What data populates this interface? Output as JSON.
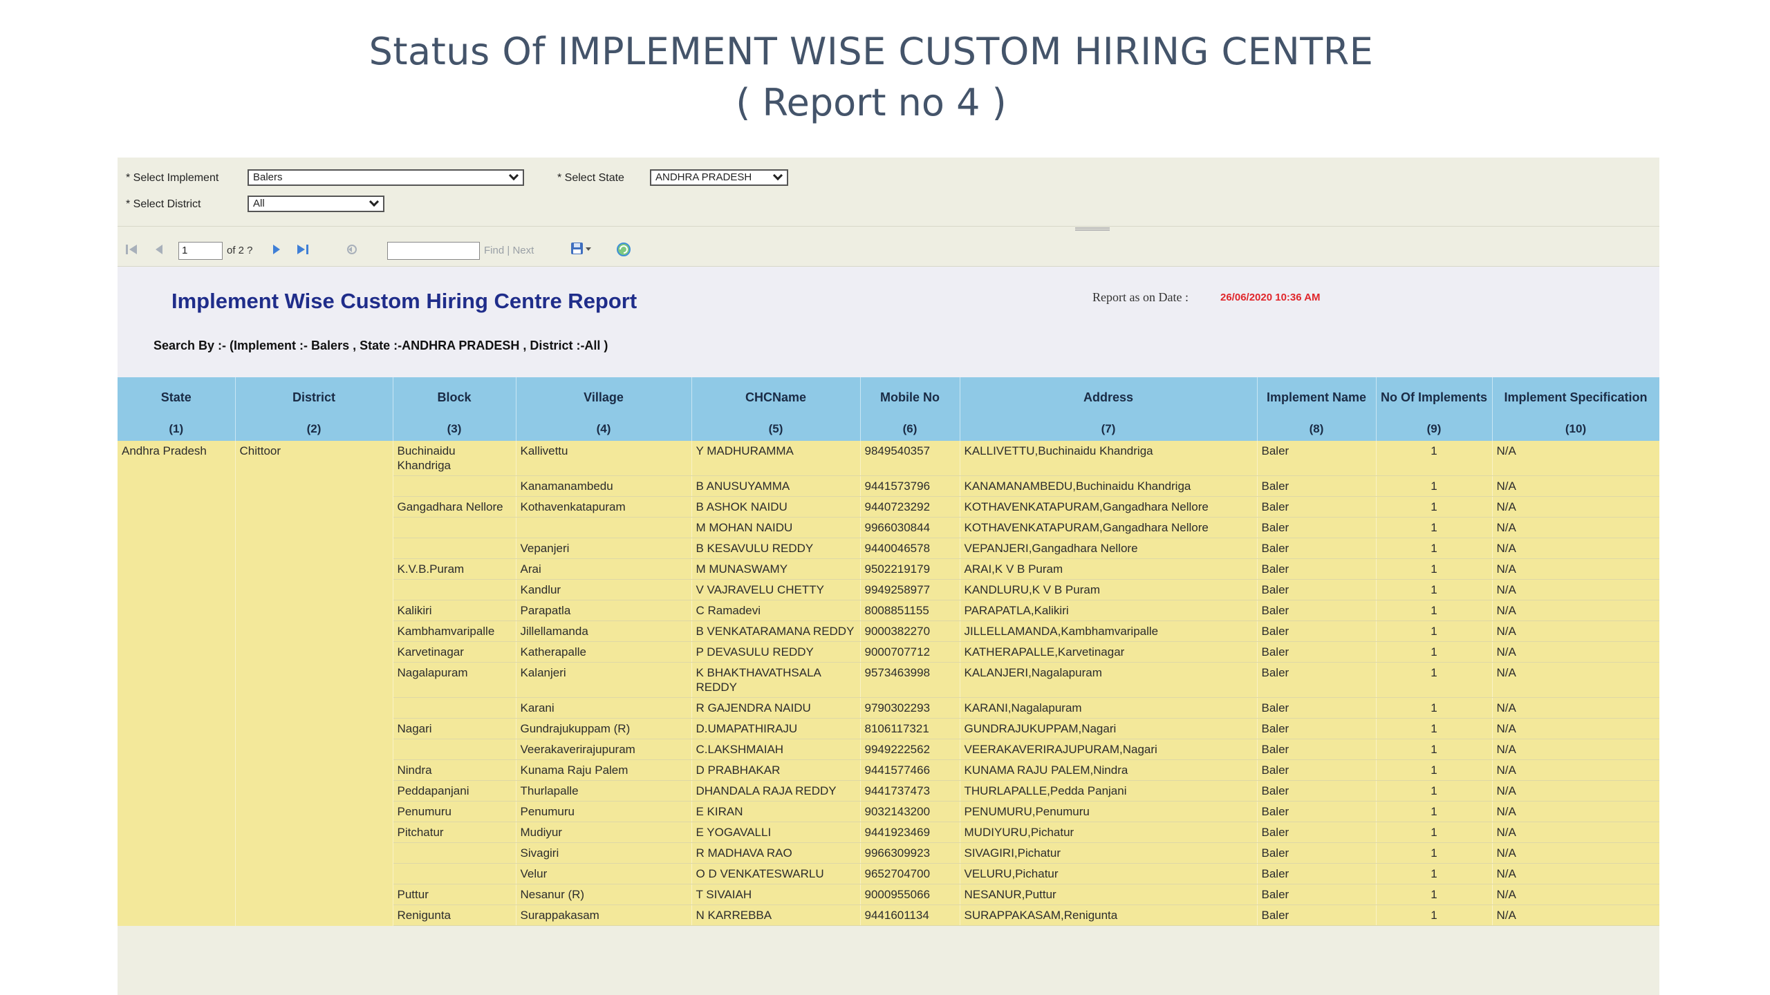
{
  "slide": {
    "title_line1": "Status Of IMPLEMENT WISE CUSTOM HIRING CENTRE",
    "title_line2": "( Report no 4 )"
  },
  "params": {
    "implement_label": "* Select Implement",
    "implement_value": "Balers",
    "state_label": "* Select State",
    "state_value": "ANDHRA PRADESH",
    "district_label": "* Select District",
    "district_value": "All"
  },
  "toolbar": {
    "page_value": "1",
    "page_of": "of 2 ?",
    "find_label": "Find",
    "separator": "|",
    "next_label": "Next"
  },
  "report": {
    "title": "Implement Wise Custom Hiring Centre Report",
    "date_label": "Report as on Date :",
    "date_value": "26/06/2020 10:36 AM",
    "search_by": "Search By :- (Implement :- Balers , State :-ANDHRA PRADESH , District :-All )"
  },
  "table": {
    "headers": [
      "State",
      "District",
      "Block",
      "Village",
      "CHCName",
      "Mobile No",
      "Address",
      "Implement Name",
      "No Of Implements",
      "Implement Specification"
    ],
    "numbers": [
      "(1)",
      "(2)",
      "(3)",
      "(4)",
      "(5)",
      "(6)",
      "(7)",
      "(8)",
      "(9)",
      "(10)"
    ],
    "state": "Andhra Pradesh",
    "district": "Chittoor",
    "rows": [
      {
        "block": "Buchinaidu Khandriga",
        "village": "Kallivettu",
        "chc": "Y MADHURAMMA",
        "mobile": "9849540357",
        "address": "KALLIVETTU,Buchinaidu Khandriga",
        "impl": "Baler",
        "count": "1",
        "spec": "N/A"
      },
      {
        "block": "",
        "village": "Kanamanambedu",
        "chc": "B ANUSUYAMMA",
        "mobile": "9441573796",
        "address": "KANAMANAMBEDU,Buchinaidu Khandriga",
        "impl": "Baler",
        "count": "1",
        "spec": "N/A"
      },
      {
        "block": "Gangadhara Nellore",
        "village": "Kothavenkatapuram",
        "chc": "B ASHOK NAIDU",
        "mobile": "9440723292",
        "address": "KOTHAVENKATAPURAM,Gangadhara Nellore",
        "impl": "Baler",
        "count": "1",
        "spec": "N/A"
      },
      {
        "block": "",
        "village": "",
        "chc": "M MOHAN NAIDU",
        "mobile": "9966030844",
        "address": "KOTHAVENKATAPURAM,Gangadhara Nellore",
        "impl": "Baler",
        "count": "1",
        "spec": "N/A"
      },
      {
        "block": "",
        "village": "Vepanjeri",
        "chc": "B KESAVULU REDDY",
        "mobile": "9440046578",
        "address": "VEPANJERI,Gangadhara Nellore",
        "impl": "Baler",
        "count": "1",
        "spec": "N/A"
      },
      {
        "block": "K.V.B.Puram",
        "village": "Arai",
        "chc": "M MUNASWAMY",
        "mobile": "9502219179",
        "address": "ARAI,K V B Puram",
        "impl": "Baler",
        "count": "1",
        "spec": "N/A"
      },
      {
        "block": "",
        "village": "Kandlur",
        "chc": "V VAJRAVELU CHETTY",
        "mobile": "9949258977",
        "address": "KANDLURU,K V B Puram",
        "impl": "Baler",
        "count": "1",
        "spec": "N/A"
      },
      {
        "block": "Kalikiri",
        "village": "Parapatla",
        "chc": "C Ramadevi",
        "mobile": "8008851155",
        "address": "PARAPATLA,Kalikiri",
        "impl": "Baler",
        "count": "1",
        "spec": "N/A"
      },
      {
        "block": "Kambhamvaripalle",
        "village": "Jillellamanda",
        "chc": "B VENKATARAMANA REDDY",
        "mobile": "9000382270",
        "address": "JILLELLAMANDA,Kambhamvaripalle",
        "impl": "Baler",
        "count": "1",
        "spec": "N/A"
      },
      {
        "block": "Karvetinagar",
        "village": "Katherapalle",
        "chc": "P DEVASULU REDDY",
        "mobile": "9000707712",
        "address": "KATHERAPALLE,Karvetinagar",
        "impl": "Baler",
        "count": "1",
        "spec": "N/A"
      },
      {
        "block": "Nagalapuram",
        "village": "Kalanjeri",
        "chc": "K BHAKTHAVATHSALA REDDY",
        "mobile": "9573463998",
        "address": "KALANJERI,Nagalapuram",
        "impl": "Baler",
        "count": "1",
        "spec": "N/A"
      },
      {
        "block": "",
        "village": "Karani",
        "chc": "R GAJENDRA NAIDU",
        "mobile": "9790302293",
        "address": "KARANI,Nagalapuram",
        "impl": "Baler",
        "count": "1",
        "spec": "N/A"
      },
      {
        "block": "Nagari",
        "village": "Gundrajukuppam (R)",
        "chc": "D.UMAPATHIRAJU",
        "mobile": "8106117321",
        "address": "GUNDRAJUKUPPAM,Nagari",
        "impl": "Baler",
        "count": "1",
        "spec": "N/A"
      },
      {
        "block": "",
        "village": "Veerakaverirajupuram",
        "chc": "C.LAKSHMAIAH",
        "mobile": "9949222562",
        "address": "VEERAKAVERIRAJUPURAM,Nagari",
        "impl": "Baler",
        "count": "1",
        "spec": "N/A"
      },
      {
        "block": "Nindra",
        "village": "Kunama Raju Palem",
        "chc": "D PRABHAKAR",
        "mobile": "9441577466",
        "address": "KUNAMA RAJU PALEM,Nindra",
        "impl": "Baler",
        "count": "1",
        "spec": "N/A"
      },
      {
        "block": "Peddapanjani",
        "village": "Thurlapalle",
        "chc": "DHANDALA RAJA REDDY",
        "mobile": "9441737473",
        "address": "THURLAPALLE,Pedda Panjani",
        "impl": "Baler",
        "count": "1",
        "spec": "N/A"
      },
      {
        "block": "Penumuru",
        "village": "Penumuru",
        "chc": "E KIRAN",
        "mobile": "9032143200",
        "address": "PENUMURU,Penumuru",
        "impl": "Baler",
        "count": "1",
        "spec": "N/A"
      },
      {
        "block": "Pitchatur",
        "village": "Mudiyur",
        "chc": "E YOGAVALLI",
        "mobile": "9441923469",
        "address": "MUDIYURU,Pichatur",
        "impl": "Baler",
        "count": "1",
        "spec": "N/A"
      },
      {
        "block": "",
        "village": "Sivagiri",
        "chc": "R MADHAVA RAO",
        "mobile": "9966309923",
        "address": "SIVAGIRI,Pichatur",
        "impl": "Baler",
        "count": "1",
        "spec": "N/A"
      },
      {
        "block": "",
        "village": "Velur",
        "chc": "O D VENKATESWARLU",
        "mobile": "9652704700",
        "address": "VELURU,Pichatur",
        "impl": "Baler",
        "count": "1",
        "spec": "N/A"
      },
      {
        "block": "Puttur",
        "village": "Nesanur (R)",
        "chc": "T SIVAIAH",
        "mobile": "9000955066",
        "address": "NESANUR,Puttur",
        "impl": "Baler",
        "count": "1",
        "spec": "N/A"
      },
      {
        "block": "Renigunta",
        "village": "Surappakasam",
        "chc": "N KARREBBA",
        "mobile": "9441601134",
        "address": "SURAPPAKASAM,Renigunta",
        "impl": "Baler",
        "count": "1",
        "spec": "N/A"
      }
    ]
  }
}
